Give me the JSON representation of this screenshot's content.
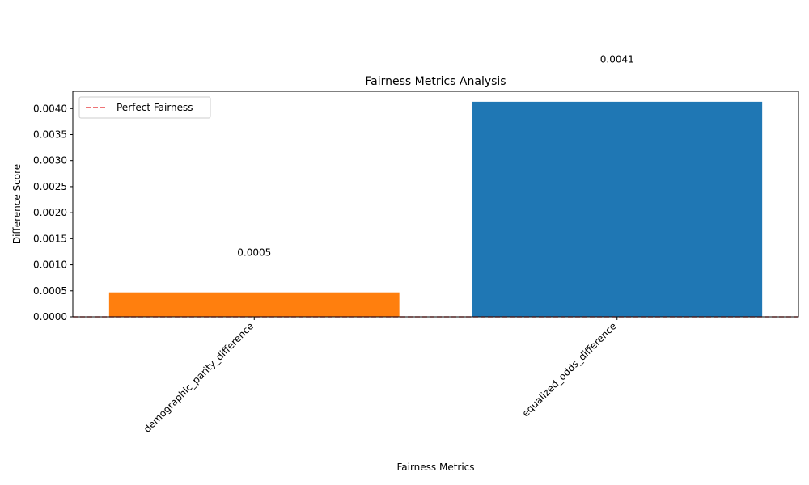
{
  "chart_data": {
    "type": "bar",
    "title": "Fairness Metrics Analysis",
    "xlabel": "Fairness Metrics",
    "ylabel": "Difference Score",
    "categories": [
      "demographic_parity_difference",
      "equalized_odds_difference"
    ],
    "values": [
      0.00047,
      0.00413
    ],
    "data_labels": [
      "0.0005",
      "0.0041"
    ],
    "bar_colors": [
      "#ff7f0e",
      "#1f77b4"
    ],
    "ylim": [
      0,
      0.00433
    ],
    "yticks": [
      "0.0000",
      "0.0005",
      "0.0010",
      "0.0015",
      "0.0020",
      "0.0025",
      "0.0030",
      "0.0035",
      "0.0040"
    ],
    "reference_line": {
      "value": 0,
      "label": "Perfect Fairness",
      "color": "#e8474a",
      "style": "dashed"
    },
    "legend": {
      "position": "top-left",
      "entries": [
        "Perfect Fairness"
      ]
    },
    "grid": false
  }
}
